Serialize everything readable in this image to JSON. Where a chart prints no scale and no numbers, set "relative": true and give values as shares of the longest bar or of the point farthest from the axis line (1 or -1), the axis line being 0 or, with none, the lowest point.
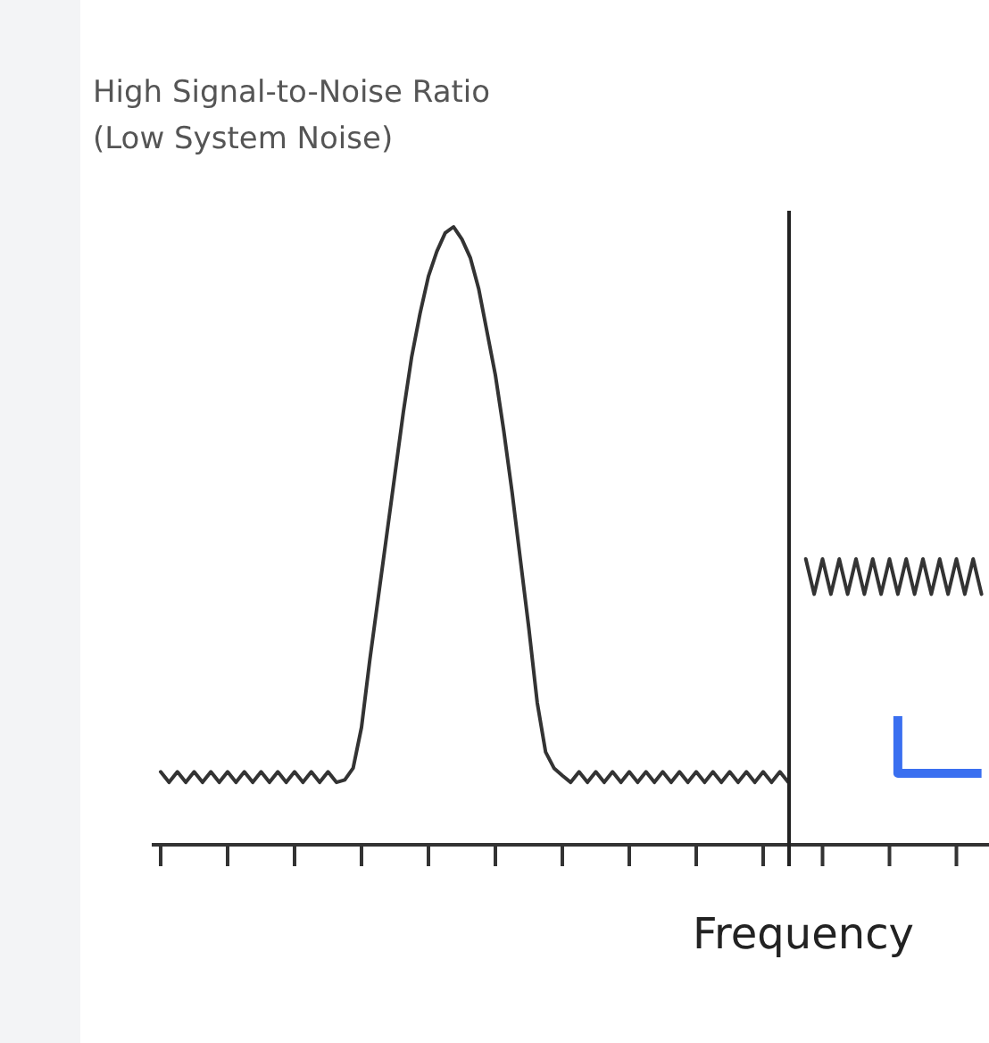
{
  "chart_data": [
    {
      "type": "line",
      "title": "High Signal-to-Noise Ratio",
      "subtitle": "(Low System Noise)",
      "xlabel": "Frequency",
      "relative": true,
      "line_style": "solid",
      "categories": [
        null,
        null,
        null,
        null,
        null,
        null,
        null,
        null,
        null,
        null,
        null,
        null,
        null,
        null,
        null,
        null,
        null,
        null,
        null,
        null,
        null,
        null,
        null,
        null,
        null,
        null,
        null,
        null,
        null,
        null,
        null,
        null,
        null,
        null,
        null,
        null,
        null,
        null,
        null,
        null,
        null,
        null,
        null,
        null,
        null,
        null,
        null,
        null,
        null,
        null,
        null,
        null,
        null,
        null,
        null,
        null,
        null,
        null,
        null,
        null,
        null,
        null,
        null,
        null,
        null,
        null,
        null,
        null,
        null,
        null,
        null,
        null,
        null,
        null,
        null,
        null
      ],
      "series": [
        {
          "color": "#333333",
          "values": [
            0.118,
            0.101,
            0.118,
            0.101,
            0.118,
            0.101,
            0.118,
            0.101,
            0.118,
            0.101,
            0.118,
            0.101,
            0.118,
            0.101,
            0.118,
            0.101,
            0.118,
            0.101,
            0.118,
            0.101,
            0.118,
            0.101,
            0.105,
            0.124,
            0.19,
            0.3,
            0.4,
            0.5,
            0.6,
            0.7,
            0.79,
            0.86,
            0.92,
            0.96,
            0.99,
            1,
            0.98,
            0.95,
            0.9,
            0.83,
            0.76,
            0.67,
            0.57,
            0.46,
            0.35,
            0.23,
            0.15,
            0.124,
            0.112,
            0.101,
            0.118,
            0.101,
            0.118,
            0.101,
            0.118,
            0.101,
            0.118,
            0.101,
            0.118,
            0.101,
            0.118,
            0.101,
            0.118,
            0.101,
            0.118,
            0.101,
            0.118,
            0.101,
            0.118,
            0.101,
            0.118,
            0.101,
            0.118,
            0.101,
            0.118,
            0.101
          ]
        }
      ]
    },
    {
      "type": "line",
      "relative": true,
      "line_style": "solid",
      "categories": [
        null,
        null,
        null,
        null,
        null,
        null,
        null,
        null,
        null,
        null,
        null,
        null,
        null,
        null,
        null,
        null,
        null,
        null,
        null,
        null,
        null,
        null,
        null,
        null
      ],
      "series": [
        {
          "color": "#333333",
          "values": [
            null,
            null,
            1,
            0.877,
            1,
            0.877,
            1,
            0.877,
            1,
            0.877,
            1,
            0.877,
            1,
            0.877,
            1,
            0.877,
            1,
            0.877,
            1,
            0.877,
            1,
            0.877,
            1,
            0.877
          ]
        },
        {
          "type": "step",
          "color": "#3a6ff0",
          "values": [
            null,
            null,
            null,
            null,
            null,
            null,
            null,
            null,
            null,
            null,
            null,
            null,
            null,
            0.45,
            0.25,
            0.25,
            0.25,
            0.25,
            0.25,
            0.25,
            0.25,
            0.25,
            0.25,
            0.25
          ]
        }
      ]
    }
  ]
}
